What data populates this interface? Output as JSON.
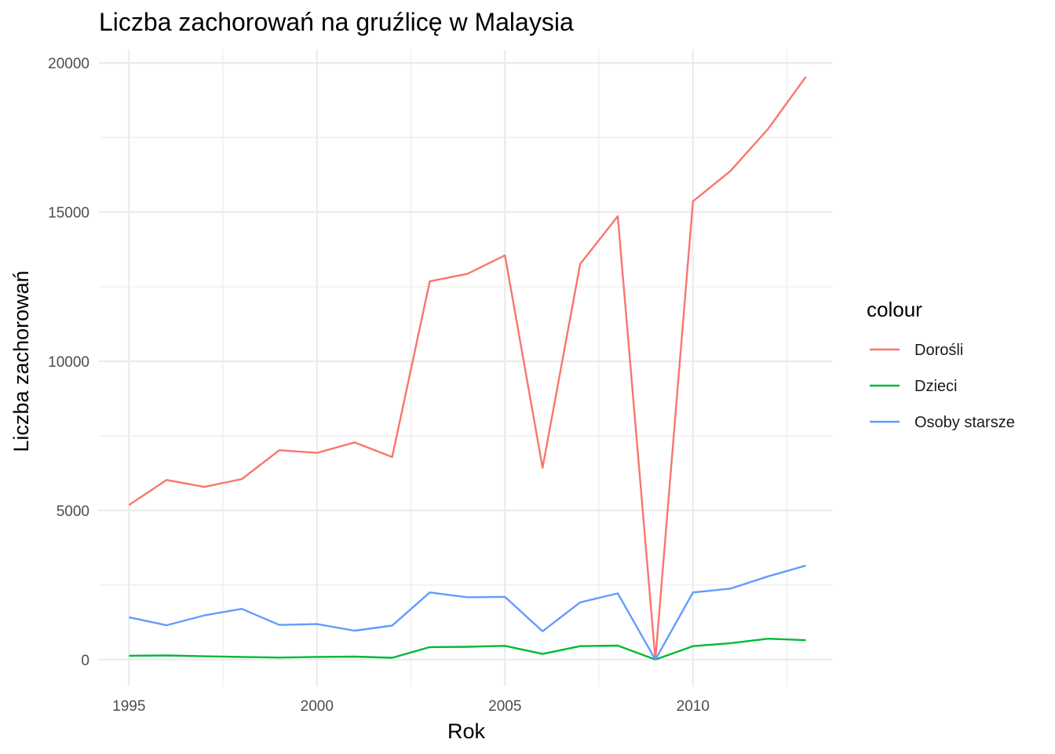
{
  "chart_data": {
    "type": "line",
    "title": "Liczba zachorowań na gruźlicę w Malaysia",
    "xlabel": "Rok",
    "ylabel": "Liczba zachorowań",
    "xlim": [
      1994.2,
      2013.7
    ],
    "ylim": [
      -900,
      20450
    ],
    "x_ticks": [
      1995,
      2000,
      2005,
      2010
    ],
    "x_tick_labels": [
      "1995",
      "2000",
      "2005",
      "2010"
    ],
    "x_minor_ticks": [
      1997.5,
      2002.5,
      2007.5,
      2012.5
    ],
    "y_ticks": [
      0,
      5000,
      10000,
      15000,
      20000
    ],
    "y_tick_labels": [
      "0",
      "5000",
      "10000",
      "15000",
      "20000"
    ],
    "y_minor_ticks": [
      2500,
      7500,
      12500,
      17500
    ],
    "grid": true,
    "legend": {
      "title": "colour",
      "position": "right"
    },
    "x": [
      1995,
      1996,
      1997,
      1998,
      1999,
      2000,
      2001,
      2002,
      2003,
      2004,
      2005,
      2006,
      2007,
      2008,
      2009,
      2010,
      2011,
      2012,
      2013
    ],
    "series": [
      {
        "name": "Dorośli",
        "color": "#F8766D",
        "values": [
          5180,
          6020,
          5790,
          6050,
          7020,
          6930,
          7280,
          6790,
          12680,
          12930,
          13550,
          6430,
          13260,
          14860,
          0,
          15360,
          16380,
          17790,
          19530
        ]
      },
      {
        "name": "Dzieci",
        "color": "#00BA38",
        "values": [
          130,
          140,
          110,
          90,
          70,
          90,
          100,
          60,
          420,
          430,
          460,
          190,
          450,
          470,
          0,
          450,
          550,
          700,
          650
        ]
      },
      {
        "name": "Osoby starsze",
        "color": "#619CFF",
        "values": [
          1420,
          1150,
          1480,
          1700,
          1160,
          1190,
          970,
          1140,
          2250,
          2090,
          2100,
          950,
          1920,
          2220,
          0,
          2250,
          2380,
          2790,
          3150
        ]
      }
    ]
  }
}
